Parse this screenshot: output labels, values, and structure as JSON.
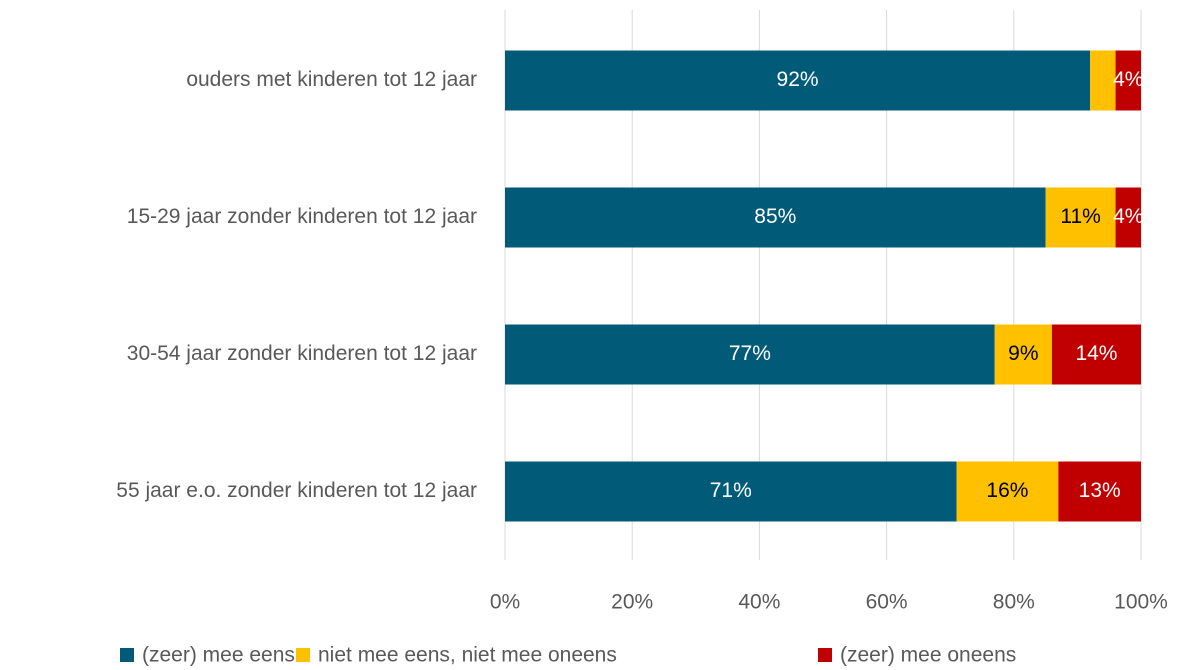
{
  "chart_data": {
    "type": "bar",
    "orientation": "horizontal",
    "stacked": true,
    "categories": [
      "ouders met kinderen tot 12 jaar",
      "15-29 jaar zonder kinderen tot 12 jaar",
      "30-54 jaar zonder kinderen tot 12 jaar",
      "55 jaar e.o. zonder kinderen tot 12 jaar"
    ],
    "series": [
      {
        "name": "(zeer) mee eens",
        "color": "#005a78",
        "values": [
          92,
          85,
          77,
          71
        ],
        "value_labels": [
          "92%",
          "85%",
          "77%",
          "71%"
        ]
      },
      {
        "name": "niet mee eens, niet mee oneens",
        "color": "#ffc000",
        "values": [
          4,
          11,
          9,
          16
        ],
        "value_labels": [
          null,
          "11%",
          "9%",
          "16%"
        ]
      },
      {
        "name": "(zeer) mee oneens",
        "color": "#c00000",
        "values": [
          4,
          4,
          14,
          13
        ],
        "value_labels": [
          "4%",
          "4%",
          "14%",
          "13%"
        ]
      }
    ],
    "xlim": [
      0,
      100
    ],
    "xticks": [
      {
        "value": 0,
        "label": "0%"
      },
      {
        "value": 20,
        "label": "20%"
      },
      {
        "value": 40,
        "label": "40%"
      },
      {
        "value": 60,
        "label": "60%"
      },
      {
        "value": 80,
        "label": "80%"
      },
      {
        "value": 100,
        "label": "100%"
      }
    ],
    "grid": true,
    "legend": "bottom"
  }
}
